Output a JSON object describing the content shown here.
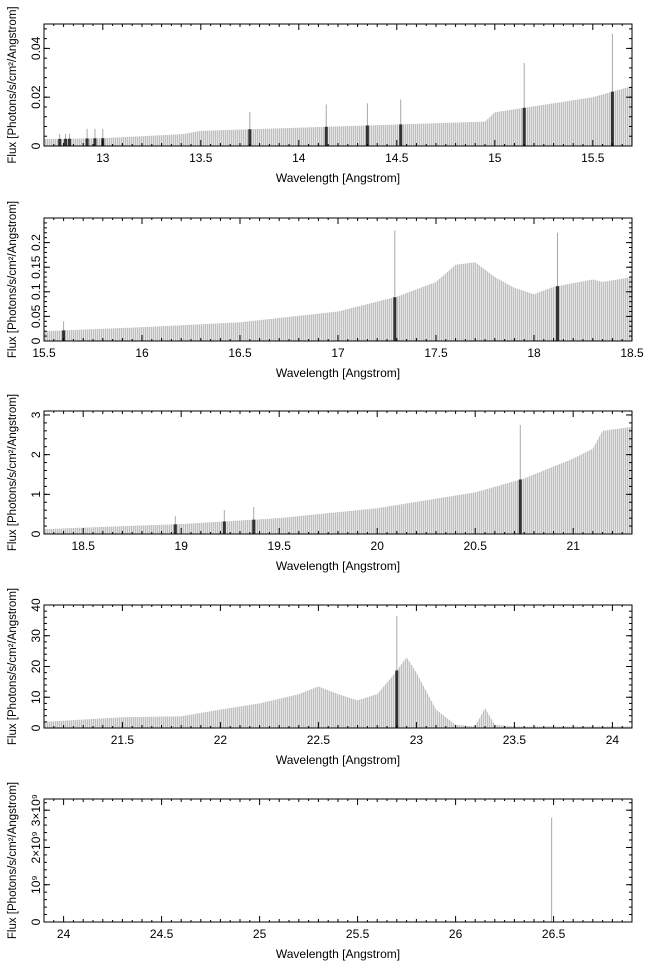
{
  "figure": {
    "ylabel": "Flux [Photons/s/cm²/Angstrom]",
    "xlabel": "Wavelength [Angstrom]"
  },
  "chart_data": [
    {
      "type": "bar",
      "xlabel": "Wavelength [Angstrom]",
      "ylabel": "Flux [Photons/s/cm²/Angstrom]",
      "xlim": [
        12.7,
        15.7
      ],
      "ylim": [
        0,
        0.05
      ],
      "xticks": [
        13,
        13.5,
        14,
        14.5,
        15,
        15.5
      ],
      "xtick_labels": [
        "13",
        "13.5",
        "14",
        "14.5",
        "15",
        "15.5"
      ],
      "yticks": [
        0,
        0.02,
        0.04
      ],
      "ytick_labels": [
        "0",
        "0.02",
        "0.04"
      ],
      "continuum": [
        [
          12.7,
          0.0028
        ],
        [
          13.0,
          0.0032
        ],
        [
          13.4,
          0.0048
        ],
        [
          13.5,
          0.0062
        ],
        [
          14.0,
          0.0075
        ],
        [
          14.5,
          0.0088
        ],
        [
          14.95,
          0.01
        ],
        [
          15.0,
          0.0138
        ],
        [
          15.3,
          0.0175
        ],
        [
          15.5,
          0.02
        ],
        [
          15.7,
          0.0245
        ]
      ],
      "lines": [
        [
          12.78,
          0.005
        ],
        [
          12.81,
          0.005
        ],
        [
          12.83,
          0.005
        ],
        [
          12.92,
          0.007
        ],
        [
          12.96,
          0.007
        ],
        [
          13.0,
          0.007
        ],
        [
          13.75,
          0.014
        ],
        [
          14.14,
          0.017
        ],
        [
          14.35,
          0.0175
        ],
        [
          14.52,
          0.019
        ],
        [
          15.15,
          0.034
        ],
        [
          15.6,
          0.046
        ]
      ]
    },
    {
      "type": "bar",
      "xlabel": "Wavelength [Angstrom]",
      "ylabel": "Flux [Photons/s/cm²/Angstrom]",
      "xlim": [
        15.5,
        18.5
      ],
      "ylim": [
        0,
        0.25
      ],
      "xticks": [
        15.5,
        16,
        16.5,
        17,
        17.5,
        18,
        18.5
      ],
      "xtick_labels": [
        "15.5",
        "16",
        "16.5",
        "17",
        "17.5",
        "18",
        "18.5"
      ],
      "yticks": [
        0,
        0.05,
        0.1,
        0.15,
        0.2
      ],
      "ytick_labels": [
        "0",
        "0.05",
        "0.1",
        "0.15",
        "0.2"
      ],
      "continuum": [
        [
          15.5,
          0.02
        ],
        [
          16.0,
          0.028
        ],
        [
          16.5,
          0.038
        ],
        [
          17.0,
          0.06
        ],
        [
          17.3,
          0.09
        ],
        [
          17.5,
          0.12
        ],
        [
          17.6,
          0.155
        ],
        [
          17.7,
          0.16
        ],
        [
          17.8,
          0.13
        ],
        [
          17.9,
          0.108
        ],
        [
          18.0,
          0.095
        ],
        [
          18.1,
          0.11
        ],
        [
          18.3,
          0.125
        ],
        [
          18.35,
          0.12
        ],
        [
          18.5,
          0.13
        ]
      ],
      "lines": [
        [
          15.6,
          0.04
        ],
        [
          17.29,
          0.225
        ],
        [
          18.12,
          0.22
        ]
      ]
    },
    {
      "type": "bar",
      "xlabel": "Wavelength [Angstrom]",
      "ylabel": "Flux [Photons/s/cm²/Angstrom]",
      "xlim": [
        18.3,
        21.3
      ],
      "ylim": [
        0,
        3.1
      ],
      "xticks": [
        18.5,
        19,
        19.5,
        20,
        20.5,
        21
      ],
      "xtick_labels": [
        "18.5",
        "19",
        "19.5",
        "20",
        "20.5",
        "21"
      ],
      "yticks": [
        0,
        1,
        2,
        3
      ],
      "ytick_labels": [
        "0",
        "1",
        "2",
        "3"
      ],
      "continuum": [
        [
          18.3,
          0.12
        ],
        [
          18.5,
          0.16
        ],
        [
          19.0,
          0.25
        ],
        [
          19.5,
          0.4
        ],
        [
          20.0,
          0.65
        ],
        [
          20.5,
          1.05
        ],
        [
          20.75,
          1.4
        ],
        [
          21.0,
          1.9
        ],
        [
          21.1,
          2.15
        ],
        [
          21.15,
          2.6
        ],
        [
          21.3,
          2.7
        ]
      ],
      "lines": [
        [
          18.97,
          0.45
        ],
        [
          19.22,
          0.6
        ],
        [
          19.37,
          0.68
        ],
        [
          20.73,
          2.75
        ]
      ]
    },
    {
      "type": "bar",
      "xlabel": "Wavelength [Angstrom]",
      "ylabel": "Flux [Photons/s/cm²/Angstrom]",
      "xlim": [
        21.1,
        24.1
      ],
      "ylim": [
        0,
        40
      ],
      "xticks": [
        21.5,
        22,
        22.5,
        23,
        23.5,
        24
      ],
      "xtick_labels": [
        "21.5",
        "22",
        "22.5",
        "23",
        "23.5",
        "24"
      ],
      "yticks": [
        0,
        10,
        20,
        30,
        40
      ],
      "ytick_labels": [
        "0",
        "10",
        "20",
        "30",
        "40"
      ],
      "continuum": [
        [
          21.1,
          2
        ],
        [
          21.5,
          3.5
        ],
        [
          21.8,
          3.8
        ],
        [
          22.0,
          6
        ],
        [
          22.2,
          8
        ],
        [
          22.4,
          11
        ],
        [
          22.5,
          13.5
        ],
        [
          22.6,
          11
        ],
        [
          22.7,
          9
        ],
        [
          22.8,
          11
        ],
        [
          22.88,
          17
        ],
        [
          22.95,
          23
        ],
        [
          23.0,
          18
        ],
        [
          23.1,
          6
        ],
        [
          23.2,
          1
        ],
        [
          23.3,
          0.5
        ],
        [
          23.35,
          6.5
        ],
        [
          23.4,
          1
        ],
        [
          23.5,
          0.5
        ],
        [
          24.1,
          0.5
        ]
      ],
      "lines": [
        [
          22.9,
          36.5
        ]
      ]
    },
    {
      "type": "bar",
      "xlabel": "Wavelength [Angstrom]",
      "ylabel": "Flux [Photons/s/cm²/Angstrom]",
      "xlim": [
        23.9,
        26.9
      ],
      "ylim": [
        0,
        3300000000
      ],
      "xticks": [
        24,
        24.5,
        25,
        25.5,
        26,
        26.5
      ],
      "xtick_labels": [
        "24",
        "24.5",
        "25",
        "25.5",
        "26",
        "26.5"
      ],
      "yticks": [
        0,
        1000000000,
        2000000000,
        3000000000
      ],
      "ytick_labels": [
        "0",
        "10⁹",
        "2×10⁹",
        "3×10⁹"
      ],
      "continuum": [
        [
          23.9,
          0
        ],
        [
          26.9,
          0
        ]
      ],
      "lines": [
        [
          26.49,
          2800000000
        ]
      ]
    }
  ]
}
